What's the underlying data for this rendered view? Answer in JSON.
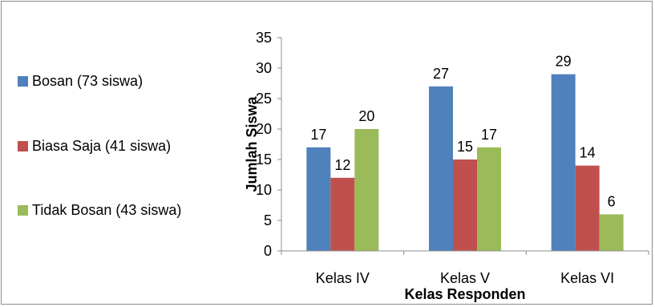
{
  "chart_data": {
    "type": "bar",
    "title": "",
    "xlabel": "Kelas Responden",
    "ylabel": "Jumlah Siswa",
    "categories": [
      "Kelas IV",
      "Kelas V",
      "Kelas VI"
    ],
    "series": [
      {
        "name": "Bosan (73 siswa)",
        "color": "#4f81bd",
        "values": [
          17,
          27,
          29
        ]
      },
      {
        "name": "Biasa Saja (41 siswa)",
        "color": "#c0504d",
        "values": [
          12,
          15,
          14
        ]
      },
      {
        "name": "Tidak Bosan (43 siswa)",
        "color": "#9bbb59",
        "values": [
          20,
          17,
          6
        ]
      }
    ],
    "ylim": [
      0,
      35
    ],
    "yticks": [
      0,
      5,
      10,
      15,
      20,
      25,
      30,
      35
    ],
    "grid": false,
    "legend_position": "left",
    "data_labels": true
  },
  "legend": {
    "items": [
      {
        "label": "Bosan (73 siswa)",
        "color": "#4f81bd"
      },
      {
        "label": "Biasa Saja (41 siswa)",
        "color": "#c0504d"
      },
      {
        "label": "Tidak Bosan (43 siswa)",
        "color": "#9bbb59"
      }
    ]
  }
}
